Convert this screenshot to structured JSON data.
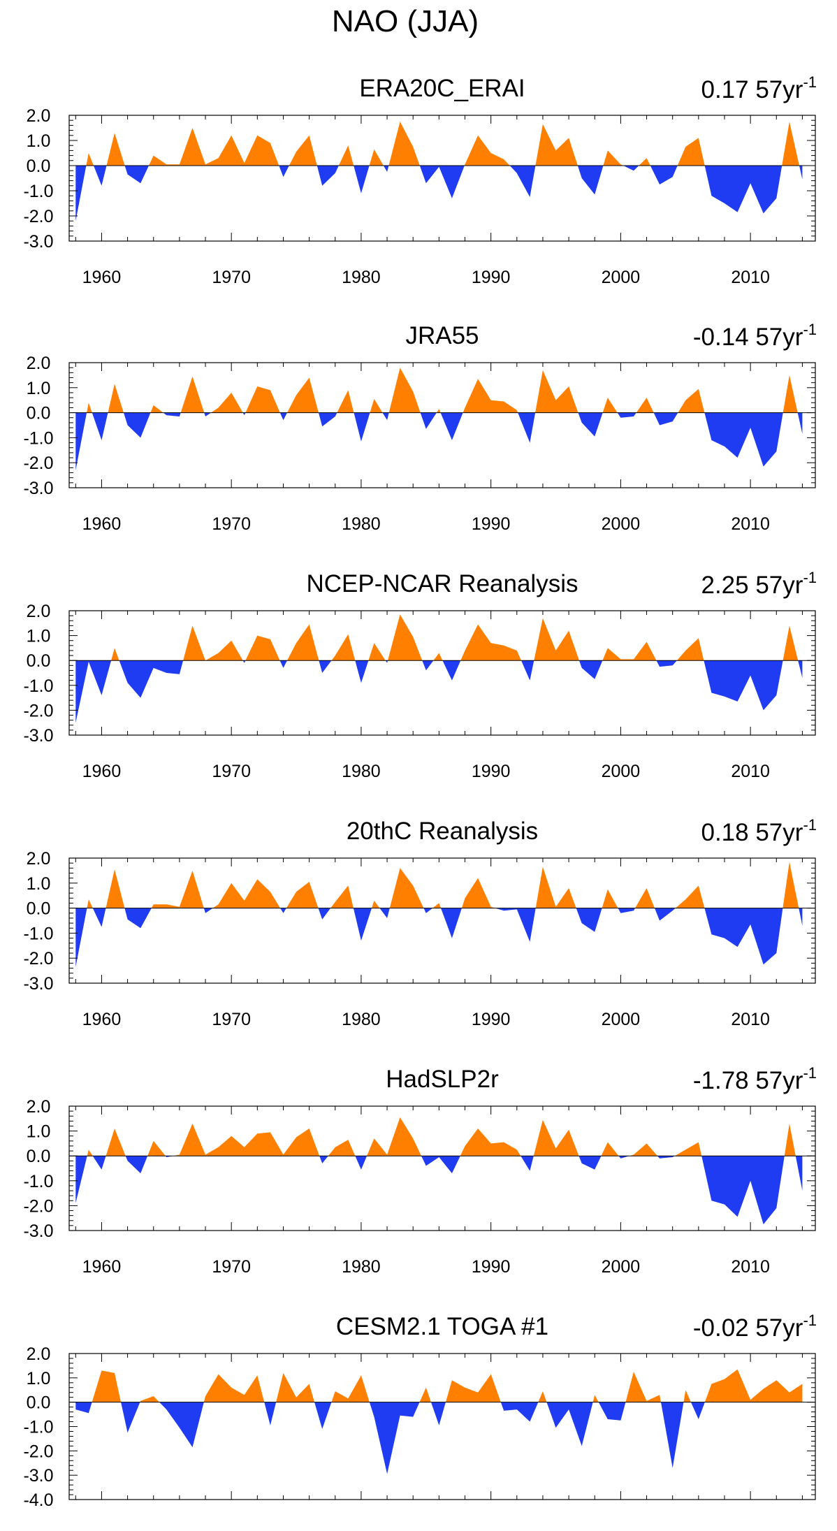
{
  "figure": {
    "title": "NAO (JJA)"
  },
  "colors": {
    "positive": "#ff8000",
    "negative": "#1f3cf2",
    "axis": "#000000"
  },
  "chart_data": [
    {
      "type": "area",
      "title": "ERA20C_ERAI",
      "trend": {
        "value": "0.17",
        "unit": "57yr",
        "exponent": "-1"
      },
      "x_ticks": [
        "1960",
        "1970",
        "1980",
        "1990",
        "2000",
        "2010"
      ],
      "y_ticks": [
        "2.0",
        "1.0",
        "0.0",
        "-1.0",
        "-2.0",
        "-3.0"
      ],
      "xlim": [
        1957.5,
        2015
      ],
      "ylim": [
        -3,
        2
      ],
      "x": [
        1958,
        1959,
        1960,
        1961,
        1962,
        1963,
        1964,
        1965,
        1966,
        1967,
        1968,
        1969,
        1970,
        1971,
        1972,
        1973,
        1974,
        1975,
        1976,
        1977,
        1978,
        1979,
        1980,
        1981,
        1982,
        1983,
        1984,
        1985,
        1986,
        1987,
        1988,
        1989,
        1990,
        1991,
        1992,
        1993,
        1994,
        1995,
        1996,
        1997,
        1998,
        1999,
        2000,
        2001,
        2002,
        2003,
        2004,
        2005,
        2006,
        2007,
        2008,
        2009,
        2010,
        2011,
        2012,
        2013,
        2014
      ],
      "values": [
        -2.2,
        0.5,
        -0.8,
        1.3,
        -0.35,
        -0.7,
        0.4,
        0.05,
        0.05,
        1.5,
        0.05,
        0.3,
        1.2,
        0.1,
        1.2,
        0.9,
        -0.45,
        0.55,
        1.2,
        -0.8,
        -0.3,
        0.8,
        -1.1,
        0.65,
        -0.25,
        1.75,
        0.75,
        -0.7,
        -0.05,
        -1.3,
        0.05,
        1.2,
        0.5,
        0.25,
        -0.3,
        -1.25,
        1.65,
        0.6,
        1.1,
        -0.5,
        -1.15,
        0.6,
        0.05,
        -0.2,
        0.3,
        -0.75,
        -0.45,
        0.75,
        1.1,
        -1.2,
        -1.5,
        -1.85,
        -0.7,
        -1.9,
        -1.3,
        1.75,
        -0.55
      ]
    },
    {
      "type": "area",
      "title": "JRA55",
      "trend": {
        "value": "-0.14",
        "unit": "57yr",
        "exponent": "-1"
      },
      "x_ticks": [
        "1960",
        "1970",
        "1980",
        "1990",
        "2000",
        "2010"
      ],
      "y_ticks": [
        "2.0",
        "1.0",
        "0.0",
        "-1.0",
        "-2.0",
        "-3.0"
      ],
      "xlim": [
        1957.5,
        2015
      ],
      "ylim": [
        -3,
        2
      ],
      "x": [
        1958,
        1959,
        1960,
        1961,
        1962,
        1963,
        1964,
        1965,
        1966,
        1967,
        1968,
        1969,
        1970,
        1971,
        1972,
        1973,
        1974,
        1975,
        1976,
        1977,
        1978,
        1979,
        1980,
        1981,
        1982,
        1983,
        1984,
        1985,
        1986,
        1987,
        1988,
        1989,
        1990,
        1991,
        1992,
        1993,
        1994,
        1995,
        1996,
        1997,
        1998,
        1999,
        2000,
        2001,
        2002,
        2003,
        2004,
        2005,
        2006,
        2007,
        2008,
        2009,
        2010,
        2011,
        2012,
        2013,
        2014
      ],
      "values": [
        -2.3,
        0.4,
        -1.1,
        1.15,
        -0.5,
        -1.0,
        0.3,
        -0.1,
        -0.15,
        1.45,
        -0.15,
        0.2,
        0.8,
        -0.1,
        1.05,
        0.9,
        -0.3,
        0.7,
        1.4,
        -0.55,
        -0.15,
        0.9,
        -1.15,
        0.55,
        -0.3,
        1.8,
        0.85,
        -0.65,
        0.15,
        -1.1,
        0.2,
        1.35,
        0.5,
        0.45,
        0.1,
        -1.2,
        1.7,
        0.5,
        1.05,
        -0.4,
        -0.95,
        0.6,
        -0.2,
        -0.15,
        0.6,
        -0.5,
        -0.35,
        0.5,
        0.95,
        -1.1,
        -1.35,
        -1.8,
        -0.6,
        -2.15,
        -1.55,
        1.5,
        -0.85
      ]
    },
    {
      "type": "area",
      "title": "NCEP-NCAR Reanalysis",
      "trend": {
        "value": "2.25",
        "unit": "57yr",
        "exponent": "-1"
      },
      "x_ticks": [
        "1960",
        "1970",
        "1980",
        "1990",
        "2000",
        "2010"
      ],
      "y_ticks": [
        "2.0",
        "1.0",
        "0.0",
        "-1.0",
        "-2.0",
        "-3.0"
      ],
      "xlim": [
        1957.5,
        2015
      ],
      "ylim": [
        -3,
        2
      ],
      "x": [
        1958,
        1959,
        1960,
        1961,
        1962,
        1963,
        1964,
        1965,
        1966,
        1967,
        1968,
        1969,
        1970,
        1971,
        1972,
        1973,
        1974,
        1975,
        1976,
        1977,
        1978,
        1979,
        1980,
        1981,
        1982,
        1983,
        1984,
        1985,
        1986,
        1987,
        1988,
        1989,
        1990,
        1991,
        1992,
        1993,
        1994,
        1995,
        1996,
        1997,
        1998,
        1999,
        2000,
        2001,
        2002,
        2003,
        2004,
        2005,
        2006,
        2007,
        2008,
        2009,
        2010,
        2011,
        2012,
        2013,
        2014
      ],
      "values": [
        -2.5,
        -0.05,
        -1.4,
        0.5,
        -0.9,
        -1.5,
        -0.3,
        -0.5,
        -0.55,
        1.4,
        0.0,
        0.3,
        0.8,
        -0.1,
        1.0,
        0.85,
        -0.3,
        0.7,
        1.45,
        -0.5,
        0.2,
        1.05,
        -0.9,
        0.7,
        -0.1,
        1.85,
        0.95,
        -0.4,
        0.3,
        -0.8,
        0.4,
        1.45,
        0.7,
        0.6,
        0.4,
        -0.8,
        1.7,
        0.4,
        1.2,
        -0.3,
        -0.75,
        0.5,
        0.05,
        0.05,
        0.75,
        -0.25,
        -0.2,
        0.4,
        0.9,
        -1.3,
        -1.45,
        -1.65,
        -0.6,
        -2.0,
        -1.4,
        1.4,
        -0.7
      ]
    },
    {
      "type": "area",
      "title": "20thC Reanalysis",
      "trend": {
        "value": "0.18",
        "unit": "57yr",
        "exponent": "-1"
      },
      "x_ticks": [
        "1960",
        "1970",
        "1980",
        "1990",
        "2000",
        "2010"
      ],
      "y_ticks": [
        "2.0",
        "1.0",
        "0.0",
        "-1.0",
        "-2.0",
        "-3.0"
      ],
      "xlim": [
        1957.5,
        2015
      ],
      "ylim": [
        -3,
        2
      ],
      "x": [
        1958,
        1959,
        1960,
        1961,
        1962,
        1963,
        1964,
        1965,
        1966,
        1967,
        1968,
        1969,
        1970,
        1971,
        1972,
        1973,
        1974,
        1975,
        1976,
        1977,
        1978,
        1979,
        1980,
        1981,
        1982,
        1983,
        1984,
        1985,
        1986,
        1987,
        1988,
        1989,
        1990,
        1991,
        1992,
        1993,
        1994,
        1995,
        1996,
        1997,
        1998,
        1999,
        2000,
        2001,
        2002,
        2003,
        2004,
        2005,
        2006,
        2007,
        2008,
        2009,
        2010,
        2011,
        2012,
        2013,
        2014
      ],
      "values": [
        -2.35,
        0.35,
        -0.75,
        1.55,
        -0.45,
        -0.8,
        0.15,
        0.15,
        0.05,
        1.5,
        -0.2,
        0.15,
        1.0,
        0.3,
        1.15,
        0.65,
        -0.2,
        0.65,
        1.05,
        -0.45,
        0.25,
        0.9,
        -1.3,
        0.3,
        -0.4,
        1.6,
        0.9,
        -0.2,
        0.2,
        -1.2,
        0.4,
        1.2,
        0.05,
        -0.1,
        -0.05,
        -1.35,
        1.65,
        0.05,
        0.8,
        -0.6,
        -0.95,
        0.75,
        -0.2,
        -0.1,
        0.8,
        -0.5,
        -0.1,
        0.35,
        0.9,
        -1.05,
        -1.2,
        -1.55,
        -0.65,
        -2.25,
        -1.8,
        1.85,
        -0.7
      ]
    },
    {
      "type": "area",
      "title": "HadSLP2r",
      "trend": {
        "value": "-1.78",
        "unit": "57yr",
        "exponent": "-1"
      },
      "x_ticks": [
        "1960",
        "1970",
        "1980",
        "1990",
        "2000",
        "2010"
      ],
      "y_ticks": [
        "2.0",
        "1.0",
        "0.0",
        "-1.0",
        "-2.0",
        "-3.0"
      ],
      "xlim": [
        1957.5,
        2015
      ],
      "ylim": [
        -3,
        2
      ],
      "x": [
        1958,
        1959,
        1960,
        1961,
        1962,
        1963,
        1964,
        1965,
        1966,
        1967,
        1968,
        1969,
        1970,
        1971,
        1972,
        1973,
        1974,
        1975,
        1976,
        1977,
        1978,
        1979,
        1980,
        1981,
        1982,
        1983,
        1984,
        1985,
        1986,
        1987,
        1988,
        1989,
        1990,
        1991,
        1992,
        1993,
        1994,
        1995,
        1996,
        1997,
        1998,
        1999,
        2000,
        2001,
        2002,
        2003,
        2004,
        2005,
        2006,
        2007,
        2008,
        2009,
        2010,
        2011,
        2012,
        2013,
        2014
      ],
      "values": [
        -1.9,
        0.25,
        -0.55,
        1.1,
        -0.2,
        -0.7,
        0.6,
        -0.05,
        0.05,
        1.3,
        0.05,
        0.35,
        0.8,
        0.35,
        0.9,
        0.95,
        0.05,
        0.75,
        1.1,
        -0.3,
        0.35,
        0.65,
        -0.55,
        0.7,
        0.05,
        1.55,
        0.7,
        -0.4,
        -0.05,
        -0.7,
        0.4,
        1.1,
        0.5,
        0.55,
        0.25,
        -0.6,
        1.45,
        0.3,
        1.05,
        -0.3,
        -0.55,
        0.55,
        -0.1,
        0.05,
        0.5,
        -0.1,
        -0.05,
        0.25,
        0.55,
        -1.8,
        -1.95,
        -2.45,
        -1.0,
        -2.75,
        -2.1,
        1.3,
        -1.4
      ]
    },
    {
      "type": "area",
      "title": "CESM2.1 TOGA #1",
      "trend": {
        "value": "-0.02",
        "unit": "57yr",
        "exponent": "-1"
      },
      "x_ticks": [
        "1960",
        "1970",
        "1980",
        "1990",
        "2000",
        "2010"
      ],
      "y_ticks": [
        "2.0",
        "1.0",
        "0.0",
        "-1.0",
        "-2.0",
        "-3.0",
        "-4.0"
      ],
      "xlim": [
        1957.5,
        2015
      ],
      "ylim": [
        -4,
        2
      ],
      "x": [
        1958,
        1959,
        1960,
        1961,
        1962,
        1963,
        1964,
        1965,
        1966,
        1967,
        1968,
        1969,
        1970,
        1971,
        1972,
        1973,
        1974,
        1975,
        1976,
        1977,
        1978,
        1979,
        1980,
        1981,
        1982,
        1983,
        1984,
        1985,
        1986,
        1987,
        1988,
        1989,
        1990,
        1991,
        1992,
        1993,
        1994,
        1995,
        1996,
        1997,
        1998,
        1999,
        2000,
        2001,
        2002,
        2003,
        2004,
        2005,
        2006,
        2007,
        2008,
        2009,
        2010,
        2011,
        2012,
        2013,
        2014
      ],
      "values": [
        -0.3,
        -0.45,
        1.3,
        1.2,
        -1.25,
        0.05,
        0.25,
        -0.3,
        -1.05,
        -1.85,
        0.25,
        1.15,
        0.6,
        0.3,
        1.1,
        -0.95,
        1.2,
        0.2,
        0.75,
        -1.1,
        0.45,
        0.15,
        1.1,
        -0.6,
        -2.95,
        -0.55,
        -0.6,
        0.6,
        -0.95,
        0.9,
        0.6,
        0.4,
        1.15,
        -0.35,
        -0.3,
        -0.8,
        0.45,
        -1.05,
        -0.3,
        -1.8,
        0.3,
        -0.7,
        -0.75,
        1.25,
        0.05,
        0.3,
        -2.7,
        0.5,
        -0.7,
        0.75,
        0.95,
        1.35,
        0.1,
        0.55,
        0.9,
        0.4,
        0.75
      ]
    }
  ]
}
